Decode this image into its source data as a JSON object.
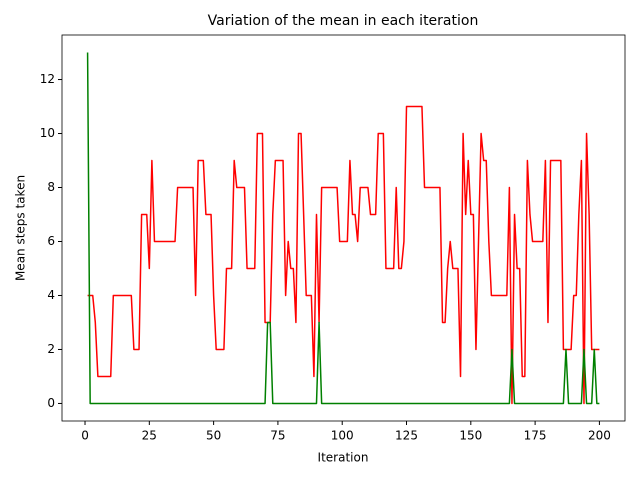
{
  "chart_data": {
    "type": "line",
    "title": "Variation of the mean in each iteration",
    "xlabel": "Iteration",
    "ylabel": "Mean steps taken",
    "x": [
      1,
      2,
      3,
      4,
      5,
      6,
      7,
      8,
      9,
      10,
      11,
      12,
      13,
      14,
      15,
      16,
      17,
      18,
      19,
      20,
      21,
      22,
      23,
      24,
      25,
      26,
      27,
      28,
      29,
      30,
      31,
      32,
      33,
      34,
      35,
      36,
      37,
      38,
      39,
      40,
      41,
      42,
      43,
      44,
      45,
      46,
      47,
      48,
      49,
      50,
      51,
      52,
      53,
      54,
      55,
      56,
      57,
      58,
      59,
      60,
      61,
      62,
      63,
      64,
      65,
      66,
      67,
      68,
      69,
      70,
      71,
      72,
      73,
      74,
      75,
      76,
      77,
      78,
      79,
      80,
      81,
      82,
      83,
      84,
      85,
      86,
      87,
      88,
      89,
      90,
      91,
      92,
      93,
      94,
      95,
      96,
      97,
      98,
      99,
      100,
      101,
      102,
      103,
      104,
      105,
      106,
      107,
      108,
      109,
      110,
      111,
      112,
      113,
      114,
      115,
      116,
      117,
      118,
      119,
      120,
      121,
      122,
      123,
      124,
      125,
      126,
      127,
      128,
      129,
      130,
      131,
      132,
      133,
      134,
      135,
      136,
      137,
      138,
      139,
      140,
      141,
      142,
      143,
      144,
      145,
      146,
      147,
      148,
      149,
      150,
      151,
      152,
      153,
      154,
      155,
      156,
      157,
      158,
      159,
      160,
      161,
      162,
      163,
      164,
      165,
      166,
      167,
      168,
      169,
      170,
      171,
      172,
      173,
      174,
      175,
      176,
      177,
      178,
      179,
      180,
      181,
      182,
      183,
      184,
      185,
      186,
      187,
      188,
      189,
      190,
      191,
      192,
      193,
      194,
      195,
      196,
      197,
      198,
      199,
      200
    ],
    "series": [
      {
        "color": "#ff0000",
        "values": [
          4,
          4,
          4,
          3,
          1,
          1,
          1,
          1,
          1,
          1,
          4,
          4,
          4,
          4,
          4,
          4,
          4,
          4,
          2,
          2,
          2,
          7,
          7,
          7,
          5,
          9,
          6,
          6,
          6,
          6,
          6,
          6,
          6,
          6,
          6,
          8,
          8,
          8,
          8,
          8,
          8,
          8,
          4,
          9,
          9,
          9,
          7,
          7,
          7,
          4,
          2,
          2,
          2,
          2,
          5,
          5,
          5,
          9,
          8,
          8,
          8,
          8,
          5,
          5,
          5,
          5,
          10,
          10,
          10,
          3,
          3,
          3,
          7,
          9,
          9,
          9,
          9,
          4,
          6,
          5,
          5,
          3,
          10,
          10,
          7,
          4,
          4,
          4,
          1,
          7,
          3,
          8,
          8,
          8,
          8,
          8,
          8,
          8,
          6,
          6,
          6,
          6,
          9,
          7,
          7,
          6,
          8,
          8,
          8,
          8,
          7,
          7,
          7,
          10,
          10,
          10,
          5,
          5,
          5,
          5,
          8,
          5,
          5,
          6,
          11,
          11,
          11,
          11,
          11,
          11,
          11,
          8,
          8,
          8,
          8,
          8,
          8,
          8,
          3,
          3,
          5,
          6,
          5,
          5,
          5,
          1,
          10,
          7,
          9,
          7,
          7,
          2,
          6,
          10,
          9,
          9,
          6,
          4,
          4,
          4,
          4,
          4,
          4,
          4,
          8,
          0,
          7,
          5,
          5,
          1,
          1,
          9,
          7,
          6,
          6,
          6,
          6,
          6,
          9,
          3,
          9,
          9,
          9,
          9,
          9,
          2,
          2,
          2,
          2,
          4,
          4,
          7,
          9,
          0,
          10,
          7,
          2,
          2,
          2,
          2
        ]
      },
      {
        "color": "#008000",
        "values": [
          13,
          0,
          0,
          0,
          0,
          0,
          0,
          0,
          0,
          0,
          0,
          0,
          0,
          0,
          0,
          0,
          0,
          0,
          0,
          0,
          0,
          0,
          0,
          0,
          0,
          0,
          0,
          0,
          0,
          0,
          0,
          0,
          0,
          0,
          0,
          0,
          0,
          0,
          0,
          0,
          0,
          0,
          0,
          0,
          0,
          0,
          0,
          0,
          0,
          0,
          0,
          0,
          0,
          0,
          0,
          0,
          0,
          0,
          0,
          0,
          0,
          0,
          0,
          0,
          0,
          0,
          0,
          0,
          0,
          0,
          3,
          3,
          0,
          0,
          0,
          0,
          0,
          0,
          0,
          0,
          0,
          0,
          0,
          0,
          0,
          0,
          0,
          0,
          0,
          0,
          3,
          0,
          0,
          0,
          0,
          0,
          0,
          0,
          0,
          0,
          0,
          0,
          0,
          0,
          0,
          0,
          0,
          0,
          0,
          0,
          0,
          0,
          0,
          0,
          0,
          0,
          0,
          0,
          0,
          0,
          0,
          0,
          0,
          0,
          0,
          0,
          0,
          0,
          0,
          0,
          0,
          0,
          0,
          0,
          0,
          0,
          0,
          0,
          0,
          0,
          0,
          0,
          0,
          0,
          0,
          0,
          0,
          0,
          0,
          0,
          0,
          0,
          0,
          0,
          0,
          0,
          0,
          0,
          0,
          0,
          0,
          0,
          0,
          0,
          0,
          2,
          0,
          0,
          0,
          0,
          0,
          0,
          0,
          0,
          0,
          0,
          0,
          0,
          0,
          0,
          0,
          0,
          0,
          0,
          0,
          0,
          2,
          0,
          0,
          0,
          0,
          0,
          0,
          2,
          0,
          0,
          0,
          2,
          0,
          0
        ]
      }
    ],
    "xlim": [
      -8.95,
      209.95
    ],
    "xticks": [
      0,
      25,
      50,
      75,
      100,
      125,
      150,
      175,
      200
    ],
    "ylim": [
      -0.65,
      13.65
    ],
    "yticks": [
      0,
      2,
      4,
      6,
      8,
      10,
      12
    ],
    "grid": false
  }
}
